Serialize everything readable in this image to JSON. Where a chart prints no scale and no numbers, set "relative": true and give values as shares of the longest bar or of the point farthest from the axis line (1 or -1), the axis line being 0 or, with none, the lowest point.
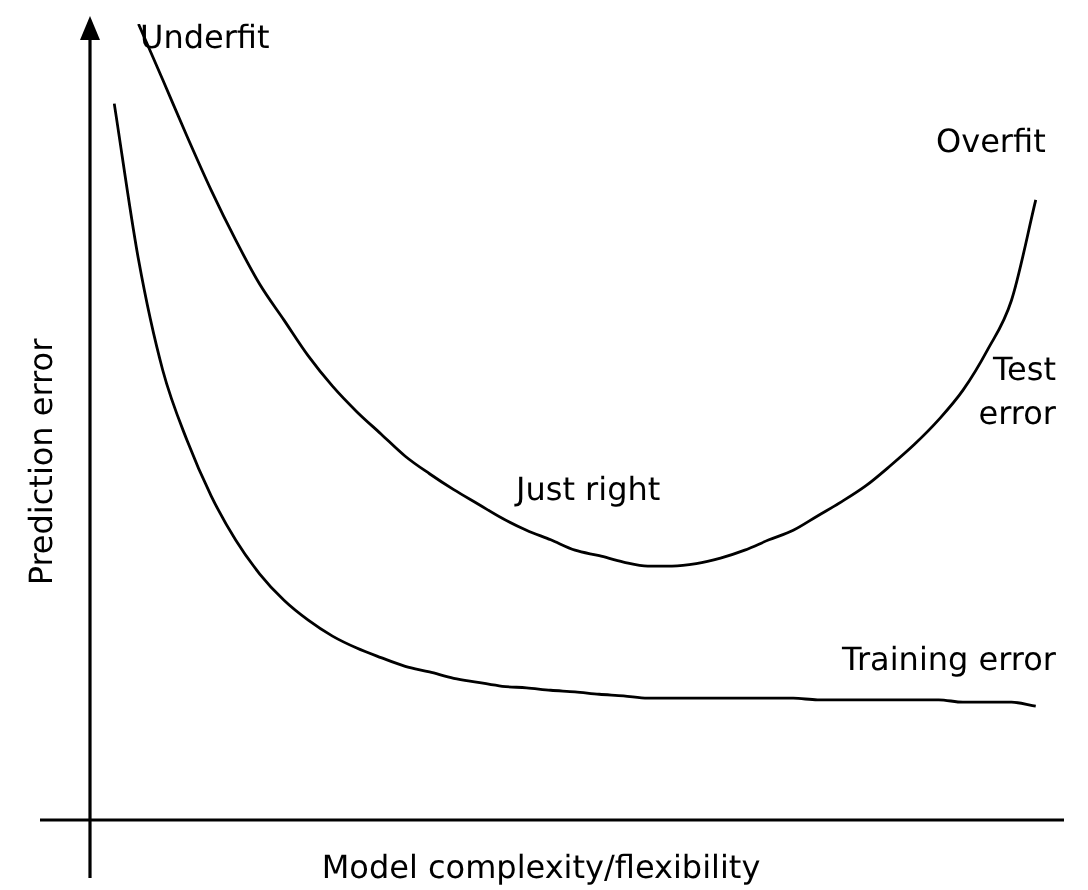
{
  "chart_data": {
    "type": "line",
    "relative": true,
    "xlabel": "Model complexity/flexibility",
    "ylabel": "Prediction error",
    "categories": [
      null,
      null,
      null,
      null,
      null,
      null,
      null,
      null,
      null,
      null,
      null,
      null,
      null,
      null,
      null,
      null,
      null,
      null,
      null,
      null,
      null,
      null,
      null,
      null,
      null,
      null,
      null,
      null,
      null,
      null,
      null,
      null,
      null,
      null,
      null,
      null,
      null,
      null,
      null,
      null,
      null
    ],
    "series": [
      {
        "name": "Test error",
        "color": "#000000",
        "values": [
          null,
          null,
          1,
          0.93,
          0.859,
          0.791,
          0.729,
          0.673,
          0.628,
          0.583,
          0.545,
          0.513,
          0.485,
          0.457,
          0.435,
          0.415,
          0.397,
          0.379,
          0.364,
          0.352,
          0.339,
          0.332,
          0.324,
          0.319,
          0.319,
          0.322,
          0.329,
          0.339,
          0.352,
          0.364,
          0.382,
          0.4,
          0.42,
          0.445,
          0.472,
          0.503,
          0.54,
          0.59,
          0.653,
          0.779,
          null
        ]
      },
      {
        "name": "Training error",
        "color": "#000000",
        "values": [
          null,
          0.9,
          0.704,
          0.565,
          0.477,
          0.407,
          0.352,
          0.309,
          0.276,
          0.251,
          0.231,
          0.216,
          0.204,
          0.193,
          0.186,
          0.178,
          0.173,
          0.168,
          0.166,
          0.163,
          0.161,
          0.158,
          0.156,
          0.153,
          0.153,
          0.153,
          0.153,
          0.153,
          0.153,
          0.153,
          0.151,
          0.151,
          0.151,
          0.151,
          0.151,
          0.151,
          0.148,
          0.148,
          0.148,
          0.143,
          null
        ]
      }
    ],
    "annotations": [
      "Underfit",
      "Just right",
      "Overfit"
    ]
  }
}
